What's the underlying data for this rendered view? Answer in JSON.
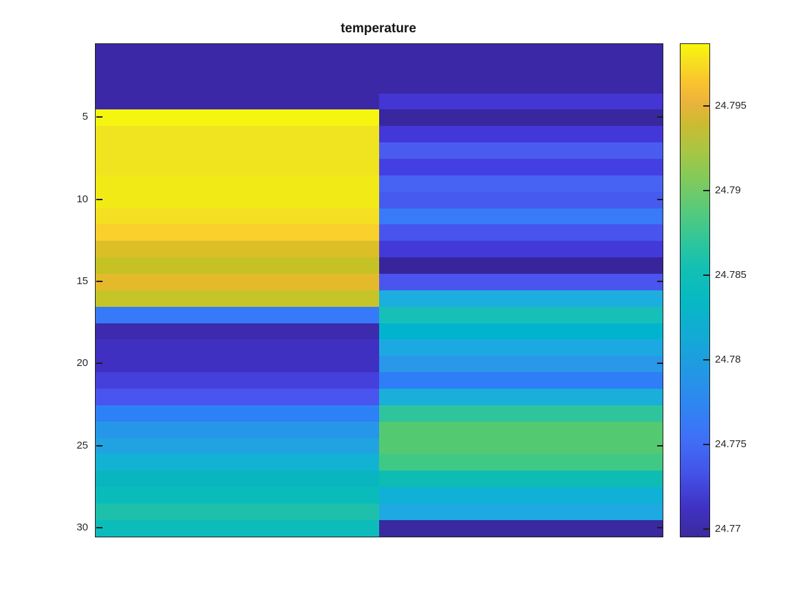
{
  "title": "temperature",
  "colors": {
    "background": "#ffffff",
    "axis_frame": "#1c1c1c",
    "tick_text": "#262626",
    "title_text": "#161616"
  },
  "y_axis": {
    "tick_labels": [
      "5",
      "10",
      "15",
      "20",
      "25",
      "30"
    ],
    "tick_rows": [
      5,
      10,
      15,
      20,
      25,
      30
    ]
  },
  "colorbar": {
    "min": 24.7696,
    "max": 24.7987,
    "tick_labels": [
      "24.77",
      "24.775",
      "24.78",
      "24.785",
      "24.79",
      "24.795"
    ],
    "tick_values": [
      24.77,
      24.775,
      24.78,
      24.785,
      24.79,
      24.795
    ],
    "gradient_stops": [
      [
        "#3b2a9d",
        0
      ],
      [
        "#4032c4",
        6
      ],
      [
        "#4453e8",
        13
      ],
      [
        "#3f70f8",
        20
      ],
      [
        "#2e86f1",
        27
      ],
      [
        "#2199e3",
        34
      ],
      [
        "#12abd4",
        41
      ],
      [
        "#06b9c3",
        48
      ],
      [
        "#15c0b2",
        55
      ],
      [
        "#35c795",
        61
      ],
      [
        "#5cca78",
        67
      ],
      [
        "#84ca59",
        73
      ],
      [
        "#adc541",
        79
      ],
      [
        "#cdbb31",
        84
      ],
      [
        "#eab33c",
        88
      ],
      [
        "#f9c22f",
        92
      ],
      [
        "#f7dd22",
        96
      ],
      [
        "#f8f60c",
        100
      ]
    ]
  },
  "chart_data": {
    "type": "heatmap",
    "title": "temperature",
    "colormap": "parula",
    "x": [
      1,
      2
    ],
    "y": [
      1,
      2,
      3,
      4,
      5,
      6,
      7,
      8,
      9,
      10,
      11,
      12,
      13,
      14,
      15,
      16,
      17,
      18,
      19,
      20,
      21,
      22,
      23,
      24,
      25,
      26,
      27,
      28,
      29,
      30
    ],
    "value_range": [
      24.7696,
      24.7987
    ],
    "values": [
      [
        24.7705,
        24.7705
      ],
      [
        24.7705,
        24.7705
      ],
      [
        24.7705,
        24.7705
      ],
      [
        24.7705,
        24.7721
      ],
      [
        24.7984,
        24.7702
      ],
      [
        24.7971,
        24.7722
      ],
      [
        24.7971,
        24.7738
      ],
      [
        24.7971,
        24.7727
      ],
      [
        24.7975,
        24.7741
      ],
      [
        24.7975,
        24.7738
      ],
      [
        24.7967,
        24.7759
      ],
      [
        24.7954,
        24.7735
      ],
      [
        24.7929,
        24.7724
      ],
      [
        24.792,
        24.7702
      ],
      [
        24.794,
        24.7734
      ],
      [
        24.7922,
        24.7801
      ],
      [
        24.776,
        24.7827
      ],
      [
        24.7708,
        24.7812
      ],
      [
        24.7715,
        24.7793
      ],
      [
        24.7715,
        24.778
      ],
      [
        24.7725,
        24.7764
      ],
      [
        24.7734,
        24.7801
      ],
      [
        24.7764,
        24.7842
      ],
      [
        24.7783,
        24.7863
      ],
      [
        24.7792,
        24.7863
      ],
      [
        24.7804,
        24.7855
      ],
      [
        24.7815,
        24.7823
      ],
      [
        24.7821,
        24.7807
      ],
      [
        24.7831,
        24.7793
      ],
      [
        24.7823,
        24.7703
      ]
    ],
    "cell_colors": [
      [
        "#3a28a6",
        "#3a28a6"
      ],
      [
        "#3a28a6",
        "#3a28a6"
      ],
      [
        "#3a28a6",
        "#3a28a6"
      ],
      [
        "#3a28a6",
        "#4336d4"
      ],
      [
        "#f5f50f",
        "#38279e"
      ],
      [
        "#f0e31f",
        "#4337d9"
      ],
      [
        "#f0e31f",
        "#4a5cf0"
      ],
      [
        "#f0e31f",
        "#443fe2"
      ],
      [
        "#f2ea16",
        "#4763f3"
      ],
      [
        "#f2ea16",
        "#475af0"
      ],
      [
        "#f4df22",
        "#387af8"
      ],
      [
        "#fad02c",
        "#4755ee"
      ],
      [
        "#dcbe27",
        "#4339d9"
      ],
      [
        "#c6c226",
        "#38259c"
      ],
      [
        "#e4ba2b",
        "#4a55ef"
      ],
      [
        "#c5c428",
        "#1caede"
      ],
      [
        "#377af9",
        "#17bfb9"
      ],
      [
        "#3c2bac",
        "#00b4cd"
      ],
      [
        "#3f30c2",
        "#1ca9e1"
      ],
      [
        "#3f30c2",
        "#2997ea"
      ],
      [
        "#4540dc",
        "#2f7df7"
      ],
      [
        "#4a54ee",
        "#19afda"
      ],
      [
        "#2d81f6",
        "#2fc49c"
      ],
      [
        "#2697e8",
        "#53ca72"
      ],
      [
        "#20a3e0",
        "#53ca72"
      ],
      [
        "#12b2d3",
        "#3fc985"
      ],
      [
        "#09b6c0",
        "#0ebcb4"
      ],
      [
        "#09bcbb",
        "#0fb1d7"
      ],
      [
        "#1dc0ab",
        "#1ea9e2"
      ],
      [
        "#0cbcbb",
        "#392a9f"
      ]
    ]
  }
}
